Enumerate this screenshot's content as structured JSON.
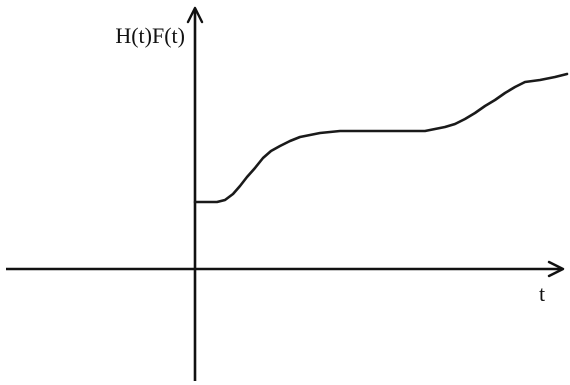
{
  "chart_data": {
    "type": "line",
    "ylabel": "H(t)F(t)",
    "xlabel": "t",
    "xlim": [
      -195,
      375
    ],
    "ylim": [
      -115,
      270
    ],
    "grid": false,
    "legend": "none",
    "series": [
      {
        "x": [
          0,
          10,
          22,
          30,
          38,
          45,
          52,
          60,
          68,
          76,
          85,
          95,
          105,
          115,
          125,
          135,
          145,
          160,
          180,
          200,
          215,
          230,
          240,
          250,
          260,
          270,
          280,
          290,
          300,
          310,
          320,
          330,
          345,
          360,
          372
        ],
        "y": [
          68,
          68,
          68,
          70,
          76,
          84,
          93,
          102,
          112,
          119,
          124,
          129,
          133,
          135,
          137,
          138,
          139,
          139,
          139,
          139,
          139,
          139,
          141,
          143,
          146,
          151,
          157,
          164,
          170,
          177,
          183,
          188,
          190,
          193,
          196
        ]
      }
    ]
  },
  "colors": {
    "axes": "#111111",
    "line": "#1a1a1a",
    "background": "#ffffff"
  }
}
